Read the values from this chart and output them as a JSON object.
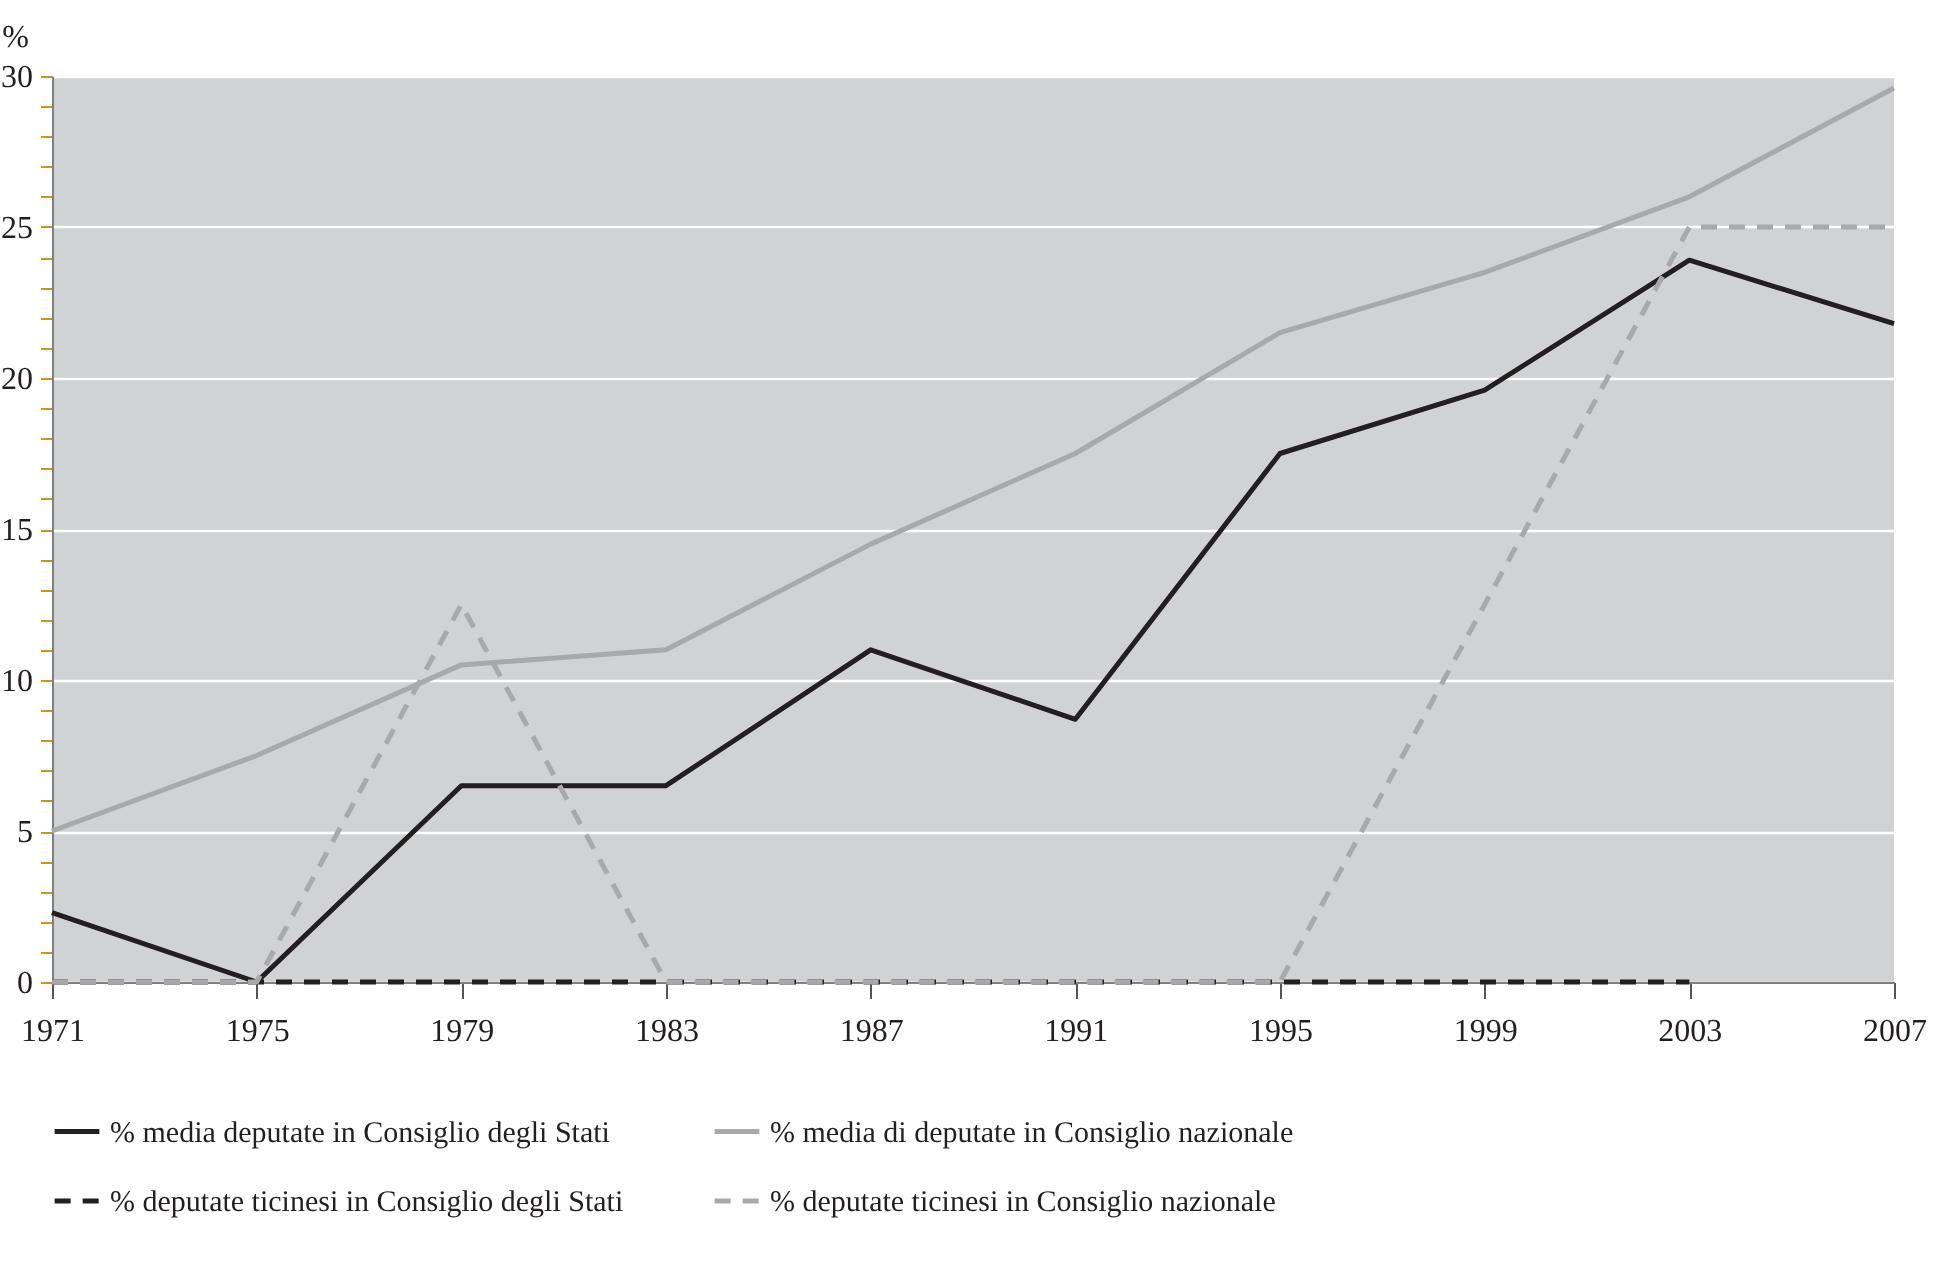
{
  "chart_data": {
    "type": "line",
    "ylabel": "%",
    "x": [
      1971,
      1975,
      1979,
      1983,
      1987,
      1991,
      1995,
      1999,
      2003,
      2007
    ],
    "xlim": [
      1971,
      2007
    ],
    "xticks": [
      1971,
      1975,
      1979,
      1983,
      1987,
      1991,
      1995,
      1999,
      2003,
      2007
    ],
    "ylim": [
      0,
      30
    ],
    "yticks": [
      0,
      {
        "value": 1,
        "label": null
      },
      {
        "value": 2,
        "label": null
      },
      {
        "value": 3,
        "label": null
      },
      {
        "value": 4,
        "label": null
      },
      5,
      {
        "value": 6,
        "label": null
      },
      {
        "value": 7,
        "label": null
      },
      {
        "value": 8,
        "label": null
      },
      {
        "value": 9,
        "label": null
      },
      10,
      {
        "value": 11,
        "label": null
      },
      {
        "value": 12,
        "label": null
      },
      {
        "value": 13,
        "label": null
      },
      {
        "value": 14,
        "label": null
      },
      15,
      {
        "value": 16,
        "label": null
      },
      {
        "value": 17,
        "label": null
      },
      {
        "value": 18,
        "label": null
      },
      {
        "value": 19,
        "label": null
      },
      20,
      {
        "value": 21,
        "label": null
      },
      {
        "value": 22,
        "label": null
      },
      {
        "value": 23,
        "label": null
      },
      {
        "value": 24,
        "label": null
      },
      25,
      {
        "value": 26,
        "label": null
      },
      {
        "value": 27,
        "label": null
      },
      {
        "value": 28,
        "label": null
      },
      {
        "value": 29,
        "label": null
      },
      30
    ],
    "grid": "y",
    "legend": "bottom",
    "marker": "none",
    "series": [
      {
        "name": "% media deputate in Consiglio degli Stati",
        "color": "#231f20",
        "line_style": "solid",
        "values": [
          2.3,
          0,
          6.5,
          6.5,
          11,
          8.7,
          17.5,
          19.6,
          23.9,
          21.8
        ]
      },
      {
        "name": "% media di deputate in Consiglio nazionale",
        "color": "#a7a9ac",
        "line_style": "solid",
        "values": [
          5,
          7.5,
          10.5,
          11,
          14.5,
          17.5,
          21.5,
          23.5,
          26,
          29.6
        ]
      },
      {
        "name": "% deputate ticinesi in Consiglio degli Stati",
        "color": "#231f20",
        "line_style": "dashed",
        "values": [
          0,
          0,
          0,
          0,
          0,
          0,
          0,
          0,
          0,
          null
        ]
      },
      {
        "name": "% deputate ticinesi in Consiglio nazionale",
        "color": "#a7a9ac",
        "line_style": "dashed",
        "values": [
          0,
          0,
          12.5,
          0,
          0,
          0,
          0,
          12.5,
          25,
          25
        ]
      }
    ]
  }
}
